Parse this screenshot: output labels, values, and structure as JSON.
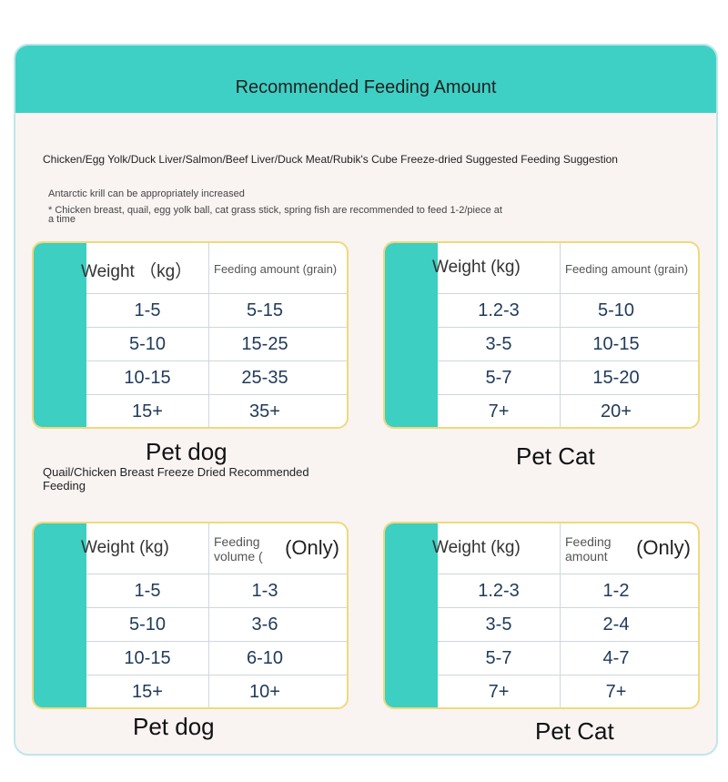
{
  "header": {
    "title": "Recommended Feeding Amount"
  },
  "section1": {
    "heading": "Chicken/Egg Yolk/Duck Liver/Salmon/Beef Liver/Duck Meat/Rubik's Cube Freeze-dried Suggested Feeding Suggestion",
    "note1": "Antarctic krill can be appropriately increased",
    "note2": "* Chicken breast, quail, egg yolk ball, cat grass stick, spring fish are recommended to feed 1-2/piece at a time"
  },
  "section2": {
    "heading": "Quail/Chicken Breast Freeze Dried Recommended Feeding"
  },
  "tables": [
    {
      "header": {
        "weight": "Weight （kg）",
        "feeding": "Feeding amount (grain)"
      },
      "rows": [
        [
          "1-5",
          "5-15"
        ],
        [
          "5-10",
          "15-25"
        ],
        [
          "10-15",
          "25-35"
        ],
        [
          "15+",
          "35+"
        ]
      ],
      "caption": "Pet dog"
    },
    {
      "header": {
        "weight": "Weight (kg)",
        "feeding": "Feeding amount (grain)"
      },
      "rows": [
        [
          "1.2-3",
          "5-10"
        ],
        [
          "3-5",
          "10-15"
        ],
        [
          "5-7",
          "15-20"
        ],
        [
          "7+",
          "20+"
        ]
      ],
      "caption": "Pet Cat"
    },
    {
      "header": {
        "weight": "Weight (kg)",
        "feeding": "Feeding volume (",
        "extra": "(Only)"
      },
      "rows": [
        [
          "1-5",
          "1-3"
        ],
        [
          "5-10",
          "3-6"
        ],
        [
          "10-15",
          "6-10"
        ],
        [
          "15+",
          "10+"
        ]
      ],
      "caption": "Pet dog"
    },
    {
      "header": {
        "weight": "Weight (kg)",
        "feeding": "Feeding amount",
        "extra": "(Only)"
      },
      "rows": [
        [
          "1.2-3",
          "1-2"
        ],
        [
          "3-5",
          "2-4"
        ],
        [
          "5-7",
          "4-7"
        ],
        [
          "7+",
          "7+"
        ]
      ],
      "caption": "Pet Cat"
    }
  ]
}
